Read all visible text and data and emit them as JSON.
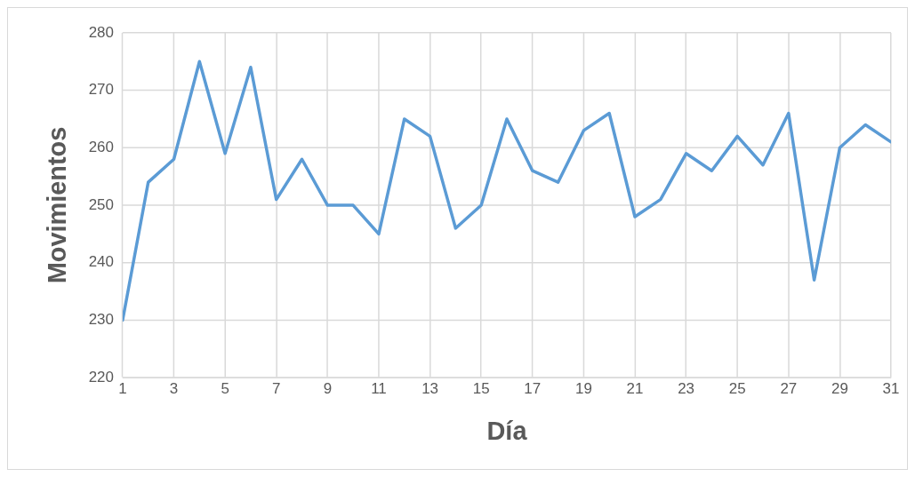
{
  "chart_data": {
    "type": "line",
    "xlabel": "Día",
    "ylabel": "Movimientos",
    "x": [
      1,
      2,
      3,
      4,
      5,
      6,
      7,
      8,
      9,
      10,
      11,
      12,
      13,
      14,
      15,
      16,
      17,
      18,
      19,
      20,
      21,
      22,
      23,
      24,
      25,
      26,
      27,
      28,
      29,
      30,
      31
    ],
    "series": [
      {
        "color": "#5b9bd5",
        "values": [
          230,
          254,
          258,
          275,
          259,
          274,
          251,
          258,
          250,
          250,
          245,
          265,
          262,
          246,
          250,
          265,
          256,
          254,
          263,
          266,
          248,
          251,
          259,
          256,
          262,
          257,
          266,
          237,
          260,
          264,
          261
        ]
      }
    ],
    "xlim": [
      1,
      31
    ],
    "xticks": [
      1,
      3,
      5,
      7,
      9,
      11,
      13,
      15,
      17,
      19,
      21,
      23,
      25,
      27,
      29,
      31
    ],
    "ylim": [
      220,
      280
    ],
    "yticks": [
      220,
      230,
      240,
      250,
      260,
      270,
      280
    ],
    "grid": true,
    "legend": false,
    "marker": "none",
    "line_style": "solid"
  }
}
